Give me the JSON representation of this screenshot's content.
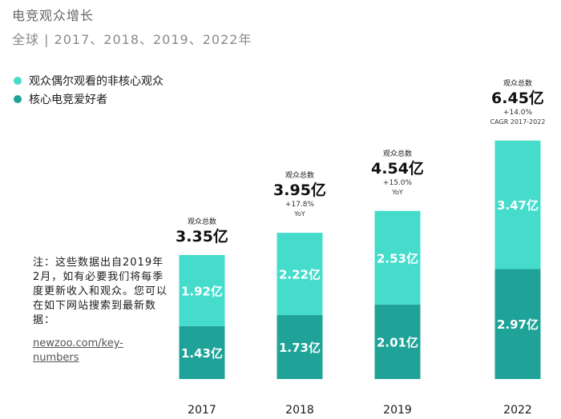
{
  "chart_data": {
    "type": "bar",
    "stacked": true,
    "title": "电竞观众增长",
    "subtitle": "全球 | 2017、2018、2019、2022年",
    "categories": [
      "2017",
      "2018",
      "2019",
      "2022"
    ],
    "series": [
      {
        "name": "核心电竞爱好者",
        "values": [
          1.43,
          1.73,
          2.01,
          2.97
        ],
        "labels": [
          "1.43亿",
          "1.73亿",
          "2.01亿",
          "2.97亿"
        ],
        "color": "#1fa398"
      },
      {
        "name": "观众偶尔观看的非核心观众",
        "values": [
          1.92,
          2.22,
          2.53,
          3.47
        ],
        "labels": [
          "1.92亿",
          "2.22亿",
          "2.53亿",
          "3.47亿"
        ],
        "color": "#45dccc"
      }
    ],
    "totals": [
      {
        "header": "观众总数",
        "value": 3.35,
        "label": "3.35亿",
        "growth": "",
        "growth_unit": ""
      },
      {
        "header": "观众总数",
        "value": 3.95,
        "label": "3.95亿",
        "growth": "+17.8%",
        "growth_unit": "YoY"
      },
      {
        "header": "观众总数",
        "value": 4.54,
        "label": "4.54亿",
        "growth": "+15.0%",
        "growth_unit": "YoY"
      },
      {
        "header": "观众总数",
        "value": 6.45,
        "label": "6.45亿",
        "growth": "+14.0%",
        "growth_unit": "CAGR 2017-2022"
      }
    ],
    "legend_position": "top-left",
    "grid": false
  },
  "note": {
    "text": "注：这些数据出自2019年2月，如有必要我们将每季度更新收入和观众。您可以在如下网站搜索到最新数据：",
    "link": "newzoo.com/key-numbers"
  }
}
